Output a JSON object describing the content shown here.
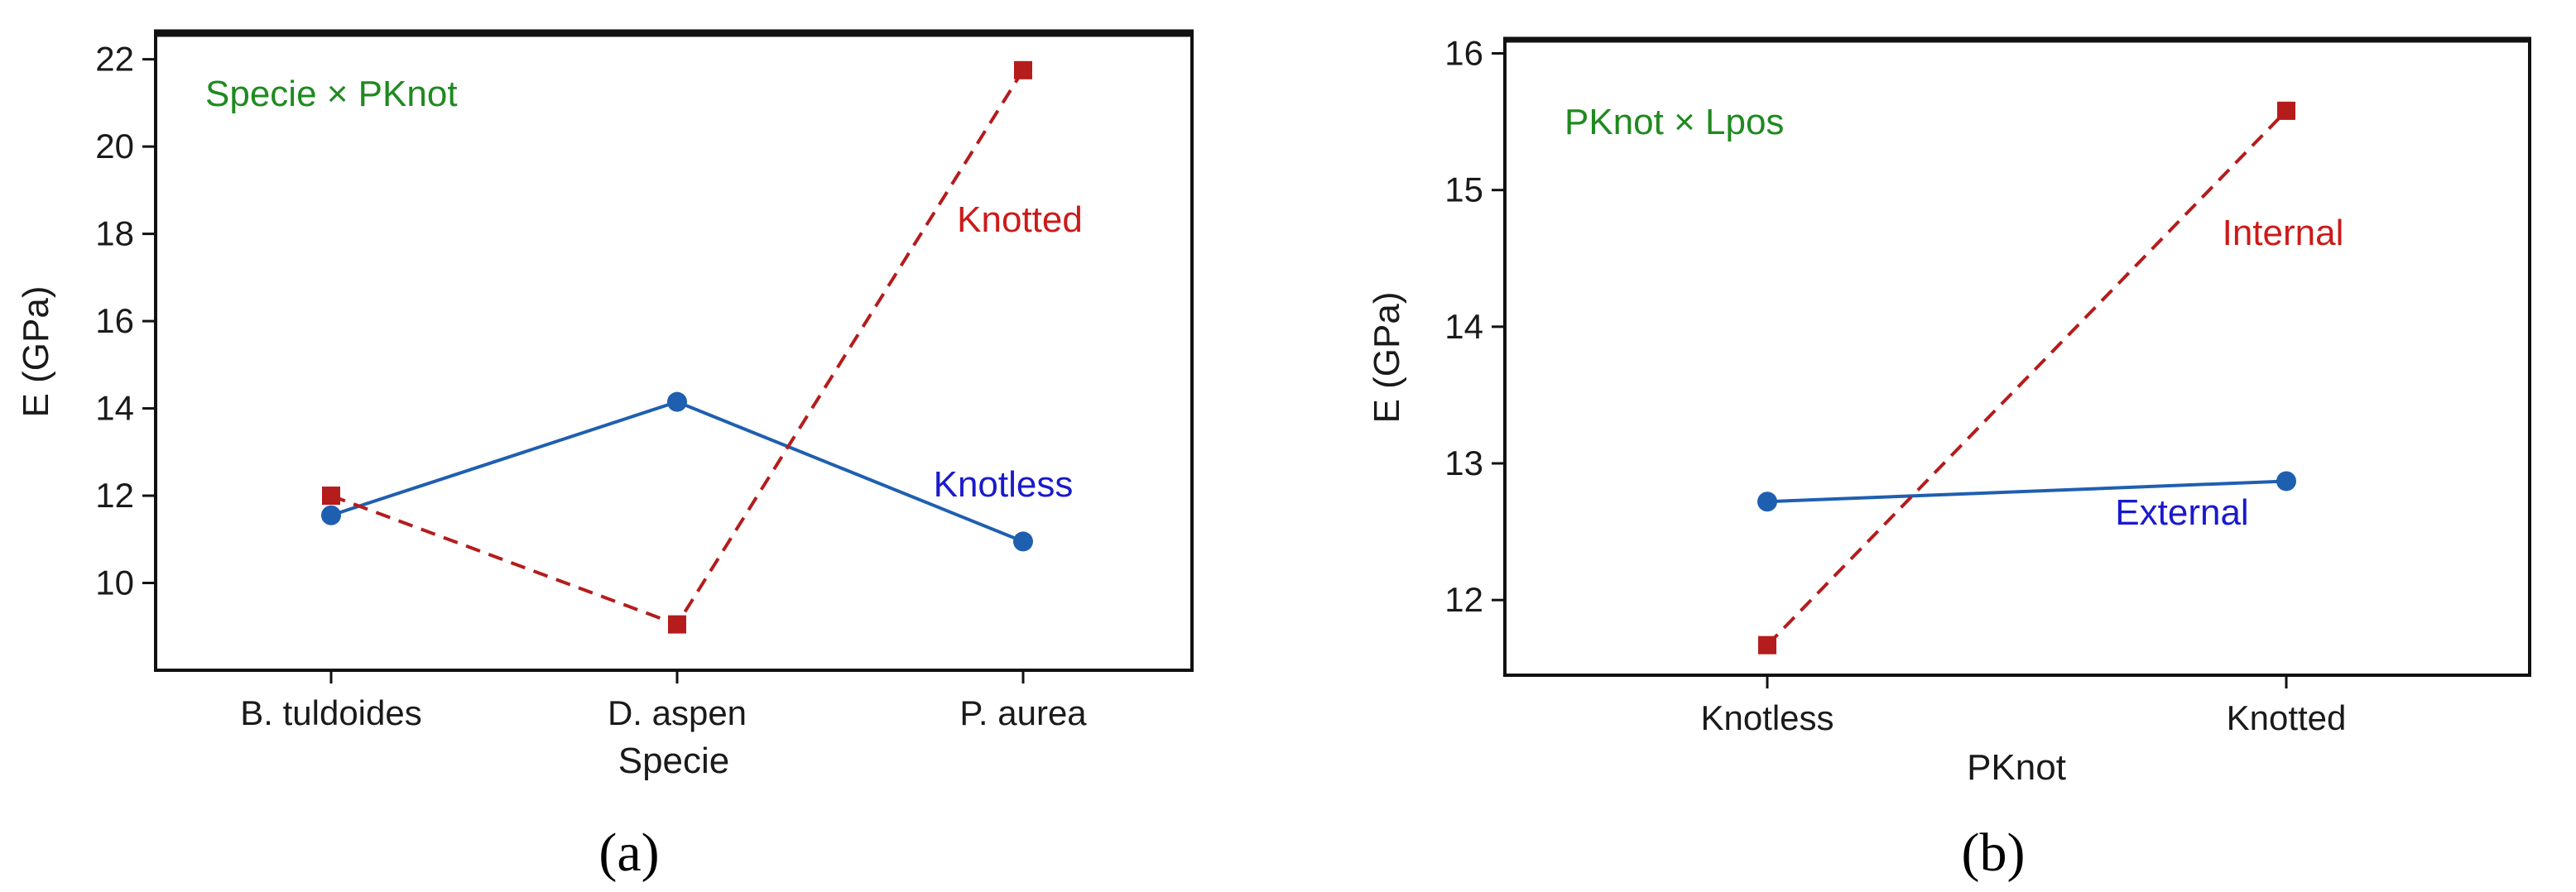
{
  "figure": {
    "panel_labels": [
      "(a)",
      "(b)"
    ]
  },
  "chart_data": [
    {
      "type": "line",
      "panel": "(a)",
      "annotation": "Specie × PKnot",
      "xlabel": "Specie",
      "ylabel": "E (GPa)",
      "categories": [
        "B. tuldoides",
        "D. aspen",
        "P. aurea"
      ],
      "ylim": [
        8,
        22.6
      ],
      "yticks": [
        10,
        12,
        14,
        16,
        18,
        20,
        22
      ],
      "series": [
        {
          "name": "Knotless",
          "values": [
            11.55,
            14.15,
            10.95
          ],
          "color": "#1f5fb0",
          "label_color": "#1a1acc",
          "dash": false,
          "marker": "circle"
        },
        {
          "name": "Knotted",
          "values": [
            12.0,
            9.05,
            21.75
          ],
          "color": "#b51c1c",
          "label_color": "#cc1a1a",
          "dash": true,
          "marker": "square"
        }
      ],
      "annotation_color": "#1f8a1f"
    },
    {
      "type": "line",
      "panel": "(b)",
      "annotation": "PKnot × Lpos",
      "xlabel": "PKnot",
      "ylabel": "E (GPa)",
      "categories": [
        "Knotless",
        "Knotted"
      ],
      "ylim": [
        11.45,
        16.1
      ],
      "yticks": [
        12,
        13,
        14,
        15,
        16
      ],
      "series": [
        {
          "name": "External",
          "values": [
            12.72,
            12.87
          ],
          "color": "#1f5fb0",
          "label_color": "#1a1acc",
          "dash": false,
          "marker": "circle"
        },
        {
          "name": "Internal",
          "values": [
            11.67,
            15.58
          ],
          "color": "#b51c1c",
          "label_color": "#cc1a1a",
          "dash": true,
          "marker": "square"
        }
      ],
      "annotation_color": "#1f8a1f"
    }
  ]
}
